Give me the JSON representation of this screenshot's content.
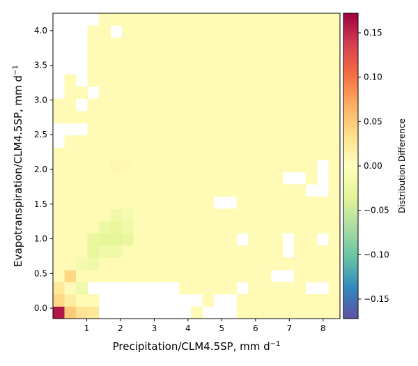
{
  "chart_data": {
    "type": "heatmap",
    "title": "",
    "xlabel": {
      "text": "Precipitation/CLM4.5SP,  mm d",
      "superscript": "−1"
    },
    "ylabel": {
      "text": "Evapotranspiration/CLM4.5SP,  mm d",
      "superscript": "−1"
    },
    "xlim": [
      0,
      8.5
    ],
    "ylim": [
      -0.15,
      4.25
    ],
    "x_ticks": [
      {
        "value": 1,
        "label": "1"
      },
      {
        "value": 2,
        "label": "2"
      },
      {
        "value": 3,
        "label": "3"
      },
      {
        "value": 4,
        "label": "4"
      },
      {
        "value": 5,
        "label": "5"
      },
      {
        "value": 6,
        "label": "6"
      },
      {
        "value": 7,
        "label": "7"
      },
      {
        "value": 8,
        "label": "8"
      }
    ],
    "y_ticks": [
      {
        "value": 0.0,
        "label": "0.0"
      },
      {
        "value": 0.5,
        "label": "0.5"
      },
      {
        "value": 1.0,
        "label": "1.0"
      },
      {
        "value": 1.5,
        "label": "1.5"
      },
      {
        "value": 2.0,
        "label": "2.0"
      },
      {
        "value": 2.5,
        "label": "2.5"
      },
      {
        "value": 3.0,
        "label": "3.0"
      },
      {
        "value": 3.5,
        "label": "3.5"
      },
      {
        "value": 4.0,
        "label": "4.0"
      }
    ],
    "x_bin_edges": [
      0,
      0.34,
      0.68,
      1.02,
      1.36,
      1.7,
      2.04,
      2.38,
      2.72,
      3.06,
      3.4,
      3.74,
      4.08,
      4.42,
      4.76,
      5.1,
      5.44,
      5.78,
      6.12,
      6.46,
      6.8,
      7.14,
      7.48,
      7.82,
      8.16,
      8.5
    ],
    "y_bin_edges": [
      -0.15,
      0.026,
      0.202,
      0.378,
      0.554,
      0.73,
      0.906,
      1.082,
      1.258,
      1.434,
      1.61,
      1.786,
      1.962,
      2.138,
      2.314,
      2.49,
      2.666,
      2.842,
      3.018,
      3.194,
      3.37,
      3.546,
      3.722,
      3.898,
      4.074,
      4.25
    ],
    "colorbar": {
      "label": "Distribution Difference",
      "vmin": -0.172,
      "vmax": 0.172,
      "colormap": "Spectral_r",
      "ticks": [
        {
          "value": 0.15,
          "label": "0.15"
        },
        {
          "value": 0.1,
          "label": "0.10"
        },
        {
          "value": 0.05,
          "label": "0.05"
        },
        {
          "value": 0.0,
          "label": "0.00"
        },
        {
          "value": -0.05,
          "label": "−0.05"
        },
        {
          "value": -0.1,
          "label": "−0.10"
        },
        {
          "value": -0.15,
          "label": "−0.15"
        }
      ]
    },
    "rows_top_to_bottom": [
      "----.....................",
      "---..-...................",
      "---......................",
      "---......................",
      "---......................",
      "-.-......................",
      "-..-.....................",
      "..-......................",
      ".........................",
      "---......................",
      "-........................",
      "..........................",
      ".......................-.",
      "....................--.-.",
      "......................--.",
      "..............--.........",
      ".........................",
      ".........................",
      "................-...-..-.",
      "....................-...",
      "..........................",
      "...................--.....",
      "...--------.....-.....--.",
      "....---------.--.........",
      "....--------.---.........",
      "....-------...-----------"
    ],
    "special_cells": [
      {
        "x": 0.2,
        "y": -0.06,
        "value": 0.16
      },
      {
        "x": 0.5,
        "y": -0.06,
        "value": 0.05
      },
      {
        "x": 0.85,
        "y": -0.06,
        "value": 0.03
      },
      {
        "x": 1.2,
        "y": -0.06,
        "value": 0.025
      },
      {
        "x": 1.55,
        "y": -0.06,
        "value": 0.02
      },
      {
        "x": 1.9,
        "y": -0.06,
        "value": 0.012
      },
      {
        "x": 2.2,
        "y": -0.06,
        "value": 0.008
      },
      {
        "x": 0.2,
        "y": 0.11,
        "value": 0.04
      },
      {
        "x": 0.5,
        "y": 0.11,
        "value": 0.02
      },
      {
        "x": 0.2,
        "y": 0.29,
        "value": 0.025
      },
      {
        "x": 0.5,
        "y": 0.29,
        "value": 0.005
      },
      {
        "x": 0.85,
        "y": 0.29,
        "value": -0.02
      },
      {
        "x": 0.5,
        "y": 0.46,
        "value": 0.04
      },
      {
        "x": 0.85,
        "y": 0.64,
        "value": -0.015
      },
      {
        "x": 1.2,
        "y": 0.64,
        "value": -0.02
      },
      {
        "x": 1.2,
        "y": 0.82,
        "value": -0.03
      },
      {
        "x": 1.55,
        "y": 0.82,
        "value": -0.02
      },
      {
        "x": 1.9,
        "y": 0.82,
        "value": -0.02
      },
      {
        "x": 1.2,
        "y": 0.99,
        "value": -0.03
      },
      {
        "x": 1.55,
        "y": 0.99,
        "value": -0.035
      },
      {
        "x": 1.9,
        "y": 0.99,
        "value": -0.035
      },
      {
        "x": 2.2,
        "y": 0.99,
        "value": -0.03
      },
      {
        "x": 1.55,
        "y": 1.17,
        "value": -0.025
      },
      {
        "x": 1.9,
        "y": 1.17,
        "value": -0.03
      },
      {
        "x": 2.2,
        "y": 1.17,
        "value": -0.02
      },
      {
        "x": 1.9,
        "y": 1.35,
        "value": -0.02
      },
      {
        "x": 2.2,
        "y": 1.35,
        "value": -0.015
      },
      {
        "x": 1.9,
        "y": 2.05,
        "value": 0.01
      },
      {
        "x": 2.2,
        "y": 2.05,
        "value": 0.008
      }
    ]
  }
}
